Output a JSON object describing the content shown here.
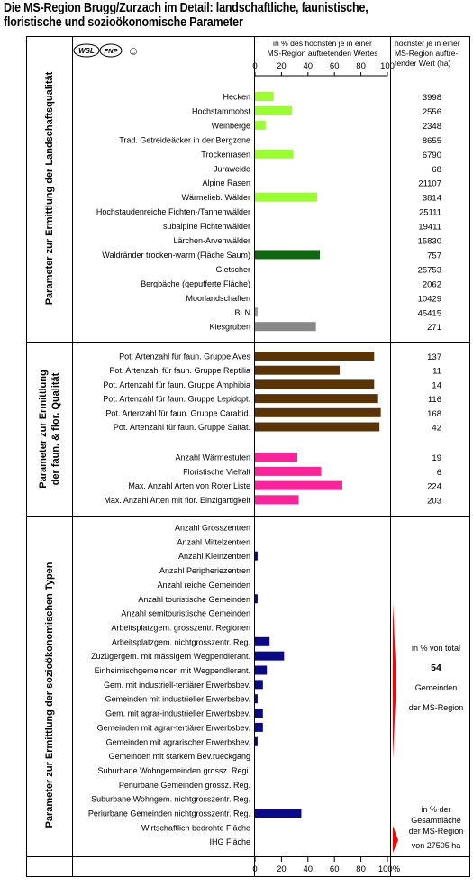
{
  "title": {
    "line1": "Die MS-Region Brugg/Zurzach im Detail: landschaftliche, faunistische,",
    "line2": "floristische und sozioökonomische Parameter"
  },
  "logos": {
    "wsl": "WSL",
    "fnp": "FNP",
    "copyright": "©"
  },
  "header": {
    "percent_line1": "in % des höchsten je in einer",
    "percent_line2": "MS-Region auftretenden Wertes",
    "max_line1": "höchster je in einer",
    "max_line2": "MS-Region auftre-",
    "max_line3": "tender Wert (ha)"
  },
  "axis": {
    "top_ticks": [
      "0",
      "20",
      "40",
      "60",
      "80",
      "100"
    ],
    "bottom_ticks": [
      "0",
      "20",
      "40",
      "60",
      "80",
      "100%"
    ]
  },
  "sections": {
    "s1": "Parameter zur Ermittlung der Landschaftsqualität",
    "s2_line1": "Parameter zur Ermittlung",
    "s2_line2": "der faun. & flor. Qualität",
    "s3": "Parameter zur Ermittlung der sozioökonomischen Typen"
  },
  "socio_note": {
    "l1": "in % von total",
    "value": "54",
    "l2": "Gemeinden",
    "l3": "der MS-Region"
  },
  "area_note": {
    "l1": "in % der",
    "l2": "Gesamtfläche",
    "l3": "der MS-Region",
    "l4": "von 27505 ha"
  },
  "colors": {
    "landscape": "#99ff33",
    "waldrand": "#116611",
    "kiesgruben": "#888888",
    "bln": "#999999",
    "fauna": "#5a3406",
    "flora": "#ff2299",
    "socio": "#0a0a88",
    "marker": "#ff0000"
  },
  "chart_data": [
    {
      "type": "bar",
      "orientation": "horizontal",
      "xlim": [
        0,
        100
      ],
      "categories": [
        "Hecken",
        "Hochstammobst",
        "Weinberge",
        "Trad. Getreideäcker in der Bergzone",
        "Trockenrasen",
        "Juraweide",
        "Alpine Rasen",
        "Wärmelieb. Wälder",
        "Hochstaudenreiche Fichten-/Tannenwälder",
        "subalpine Fichtenwälder",
        "Lärchen-Arvenwälder",
        "Waldränder trocken-warm (Fläche Saum)",
        "Gletscher",
        "Bergbäche (gepufferte Fläche)",
        "Moorlandschaften",
        "BLN",
        "Kiesgruben"
      ],
      "values": [
        14,
        28,
        8,
        0,
        29,
        0,
        0,
        47,
        0,
        0,
        0,
        49,
        0,
        0,
        0,
        2,
        46
      ],
      "max_values": [
        "3998",
        "2556",
        "2348",
        "8655",
        "6790",
        "68",
        "21107",
        "3814",
        "25111",
        "19411",
        "15830",
        "757",
        "25753",
        "2062",
        "10429",
        "45415",
        "271"
      ],
      "colors": [
        "landscape",
        "landscape",
        "landscape",
        "landscape",
        "landscape",
        "landscape",
        "landscape",
        "landscape",
        "landscape",
        "landscape",
        "landscape",
        "waldrand",
        "landscape",
        "landscape",
        "landscape",
        "bln",
        "kiesgruben"
      ]
    },
    {
      "type": "bar",
      "orientation": "horizontal",
      "xlim": [
        0,
        100
      ],
      "categories": [
        "Pot. Artenzahl für faun. Gruppe Aves",
        "Pot. Artenzahl für faun. Gruppe Reptilia",
        "Pot. Artenzahl für faun. Gruppe Amphibia",
        "Pot. Artenzahl für faun. Gruppe Lepidopt.",
        "Pot. Artenzahl für faun. Gruppe Carabid.",
        "Pot. Artenzahl für faun. Gruppe Saltat.",
        "Anzahl Wärmestufen",
        "Floristische Vielfalt",
        "Max. Anzahl Arten von Roter Liste",
        "Max. Anzahl Arten mit flor. Einzigartigkeit"
      ],
      "values": [
        90,
        64,
        90,
        93,
        95,
        94,
        32,
        50,
        66,
        33
      ],
      "max_values": [
        "137",
        "11",
        "14",
        "116",
        "168",
        "42",
        "19",
        "6",
        "224",
        "203"
      ],
      "colors": [
        "fauna",
        "fauna",
        "fauna",
        "fauna",
        "fauna",
        "fauna",
        "flora",
        "flora",
        "flora",
        "flora"
      ]
    },
    {
      "type": "bar",
      "orientation": "horizontal",
      "xlim": [
        0,
        100
      ],
      "categories": [
        "Anzahl Grosszentren",
        "Anzahl Mittelzentren",
        "Anzahl Kleinzentren",
        "Anzahl Peripheriezentren",
        "Anzahl reiche Gemeinden",
        "Anzahl touristische Gemeinden",
        "Anzahl semitouristische Gemeinden",
        "Arbeitsplatzgem. grosszentr. Regionen",
        "Arbeitsplatzgem. nichtgrosszentr. Reg.",
        "Zuzügergem. mit mässigem Wegpendlerant.",
        "Einheimischgemeinden mit Wegpendlerant.",
        "Gem. mit industriell-tertiärer Erwerbsbev.",
        "Gemeinden mit industrieller Erwerbsbev.",
        "Gem. mit agrar-industrieller Erwerbsbev.",
        "Gemeinden mit agrar-tertiärer Erwerbsbev.",
        "Gemeinden mit agrarischer Erwerbsbev.",
        "Gemeinden mit starkem Bev.rueckgang",
        "Suburbane Wohngemeinden grossz. Regi.",
        "Periurbane Gemeinden grossz. Reg.",
        "Suburbane Wohngem. nichtgrosszentr. Reg.",
        "Periurbane Gemeinden nichtgrosszentr. Reg.",
        "Wirtschaftlich bedrohte Fläche",
        "IHG Fläche"
      ],
      "values": [
        0,
        0,
        2,
        0,
        0,
        2,
        0,
        0,
        11,
        22,
        9,
        6,
        2,
        6,
        6,
        2,
        0,
        0,
        0,
        0,
        35,
        0,
        0
      ],
      "colors": [
        "socio",
        "socio",
        "socio",
        "socio",
        "socio",
        "socio",
        "socio",
        "socio",
        "socio",
        "socio",
        "socio",
        "socio",
        "socio",
        "socio",
        "socio",
        "socio",
        "socio",
        "socio",
        "socio",
        "socio",
        "socio",
        "socio",
        "socio"
      ]
    }
  ]
}
